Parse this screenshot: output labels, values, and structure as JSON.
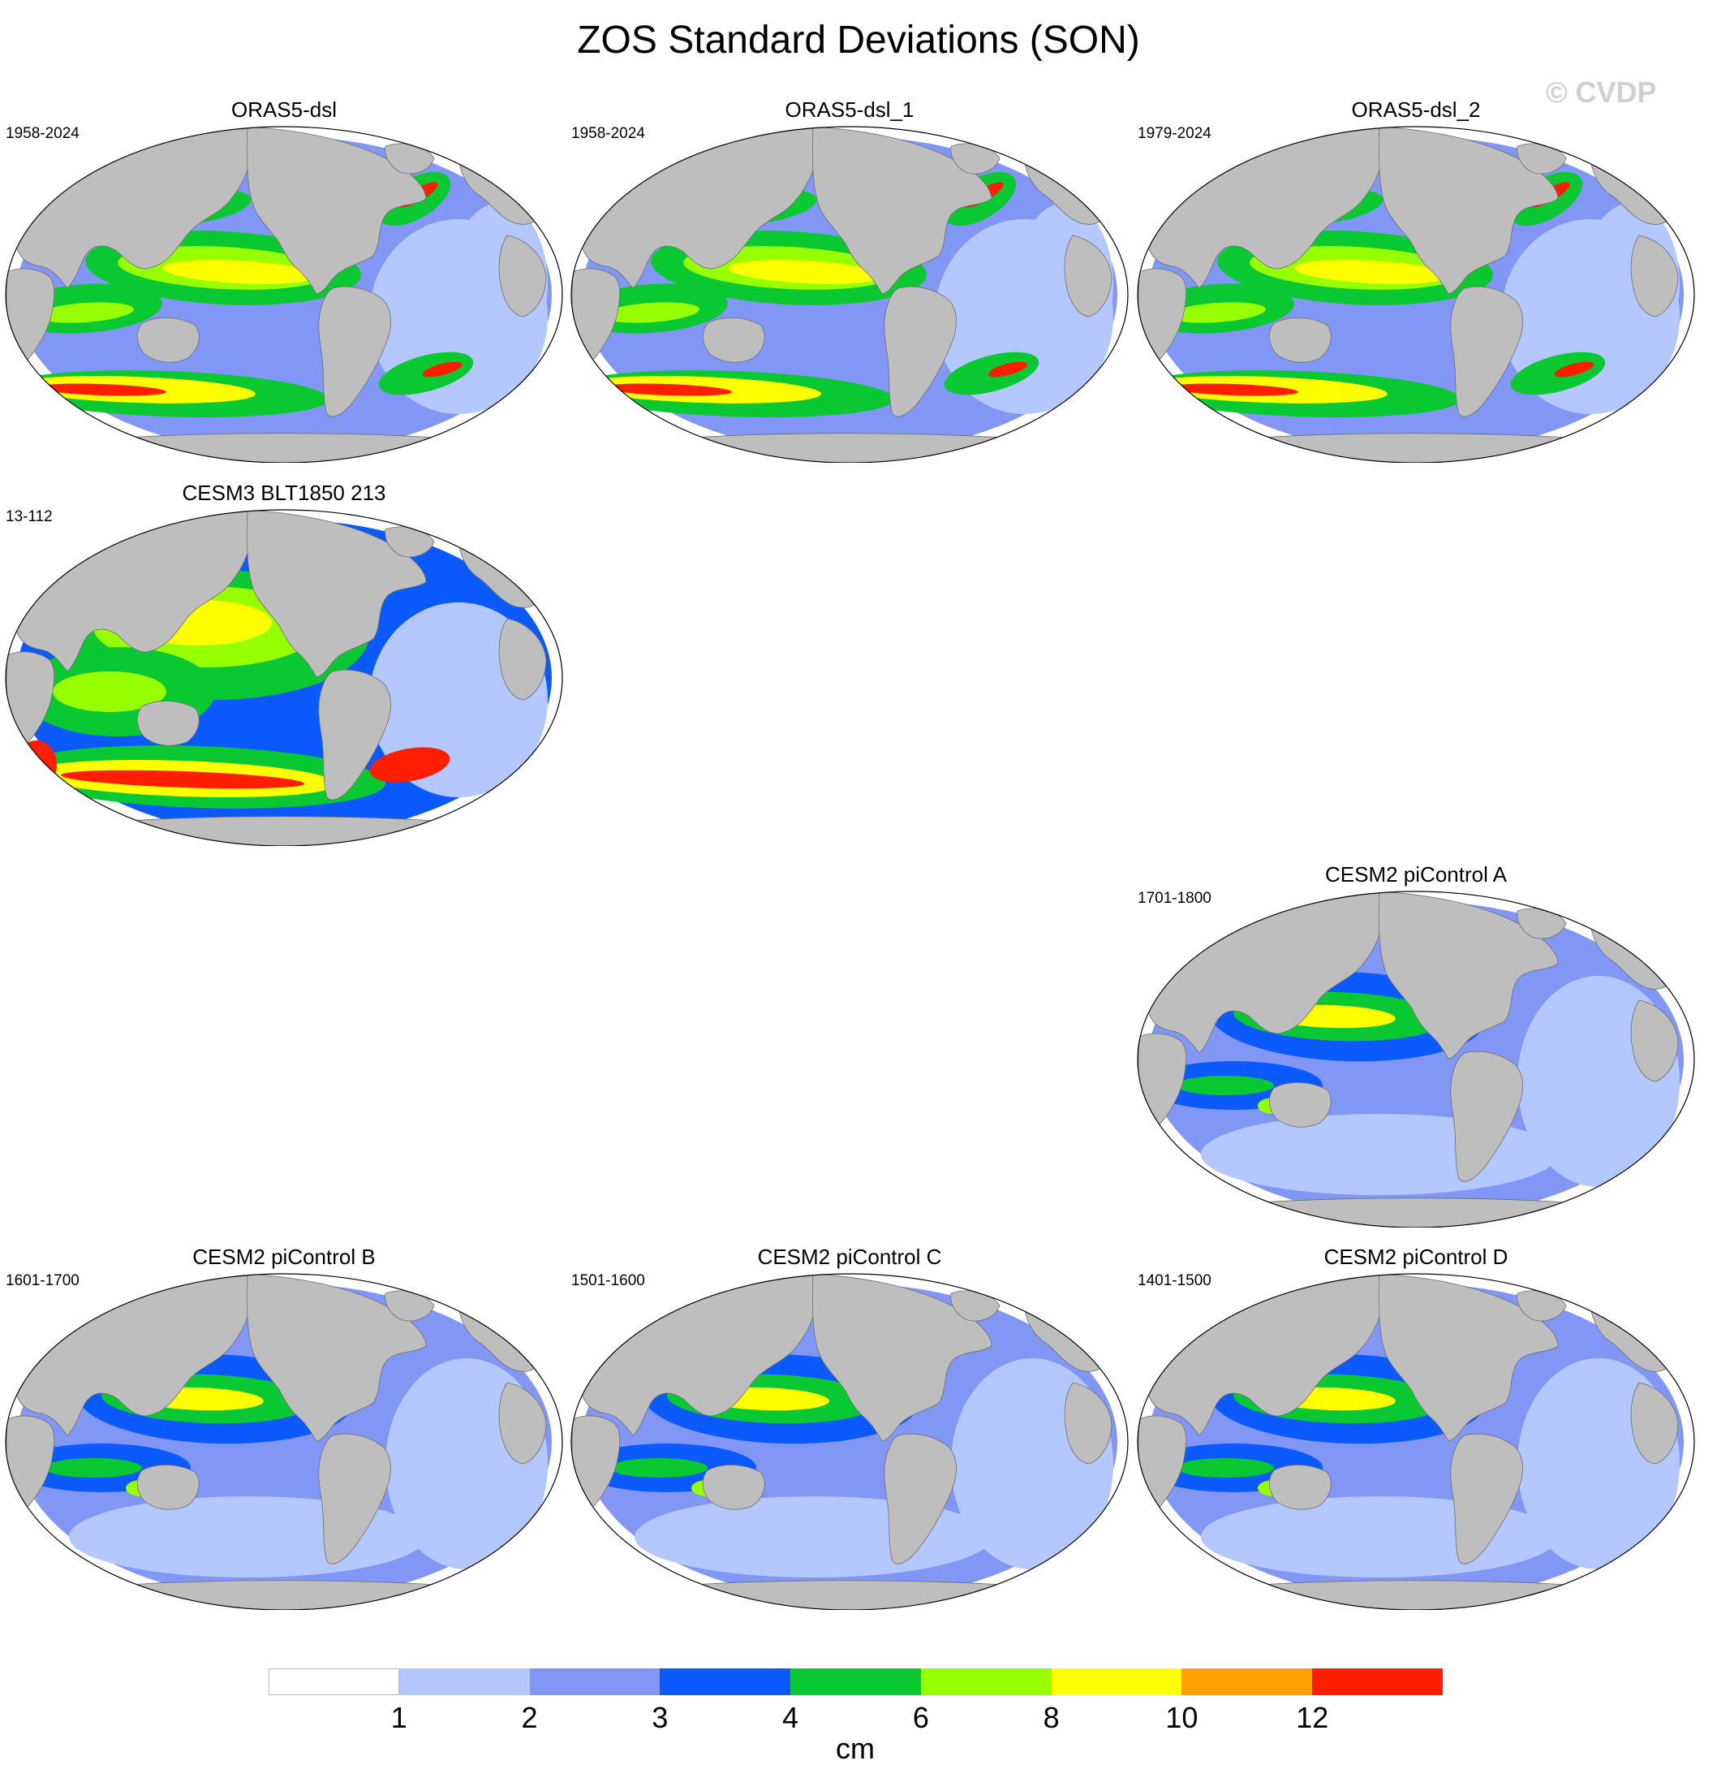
{
  "figure": {
    "title": "ZOS Standard Deviations (SON)",
    "watermark": "© CVDP"
  },
  "panels": [
    {
      "id": "p1",
      "title": "ORAS5-dsl",
      "years": "1958-2024",
      "style": "reanalysis"
    },
    {
      "id": "p2",
      "title": "ORAS5-dsl_1",
      "years": "1958-2024",
      "style": "reanalysis"
    },
    {
      "id": "p3",
      "title": "ORAS5-dsl_2",
      "years": "1979-2024",
      "style": "reanalysis"
    },
    {
      "id": "p4",
      "title": "CESM3 BLT1850 213",
      "years": "13-112",
      "style": "cesm3"
    },
    {
      "id": "p5",
      "title": "CESM2 piControl A",
      "years": "1701-1800",
      "style": "picontrol"
    },
    {
      "id": "p6",
      "title": "CESM2 piControl B",
      "years": "1601-1700",
      "style": "picontrol"
    },
    {
      "id": "p7",
      "title": "CESM2 piControl C",
      "years": "1501-1600",
      "style": "picontrol"
    },
    {
      "id": "p8",
      "title": "CESM2 piControl D",
      "years": "1401-1500",
      "style": "picontrol"
    }
  ],
  "colorbar": {
    "units": "cm",
    "levels": [
      "1",
      "2",
      "3",
      "4",
      "6",
      "8",
      "10",
      "12"
    ],
    "colors": [
      "#ffffff",
      "#b4c8ff",
      "#8296f5",
      "#0a5aff",
      "#0ac832",
      "#96ff00",
      "#ffff00",
      "#ffa000",
      "#ff1e00"
    ]
  },
  "land_color": "#bebebe"
}
